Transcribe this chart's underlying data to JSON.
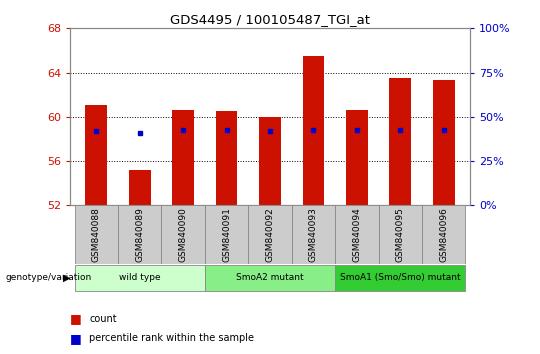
{
  "title": "GDS4495 / 100105487_TGI_at",
  "samples": [
    "GSM840088",
    "GSM840089",
    "GSM840090",
    "GSM840091",
    "GSM840092",
    "GSM840093",
    "GSM840094",
    "GSM840095",
    "GSM840096"
  ],
  "bar_tops": [
    61.1,
    55.2,
    60.6,
    60.5,
    60.0,
    65.5,
    60.6,
    63.5,
    63.3
  ],
  "bar_base": 52.0,
  "percentile_y": [
    58.7,
    58.5,
    58.8,
    58.8,
    58.7,
    58.8,
    58.8,
    58.8,
    58.8
  ],
  "ylim_left": [
    52,
    68
  ],
  "ylim_right": [
    0,
    100
  ],
  "yticks_left": [
    52,
    56,
    60,
    64,
    68
  ],
  "yticks_right": [
    0,
    25,
    50,
    75,
    100
  ],
  "bar_color": "#cc1100",
  "dot_color": "#0000cc",
  "grid_color": "#000000",
  "bg_color": "#ffffff",
  "groups": [
    {
      "label": "wild type",
      "start": 0,
      "end": 3,
      "color": "#ccffcc"
    },
    {
      "label": "SmoA2 mutant",
      "start": 3,
      "end": 6,
      "color": "#88ee88"
    },
    {
      "label": "SmoA1 (Smo/Smo) mutant",
      "start": 6,
      "end": 9,
      "color": "#33cc33"
    }
  ],
  "legend_count_color": "#cc1100",
  "legend_dot_color": "#0000cc",
  "left_tick_color": "#cc1100",
  "right_tick_color": "#0000cc",
  "bar_width": 0.5,
  "sample_box_color": "#cccccc",
  "sample_box_edge": "#888888"
}
